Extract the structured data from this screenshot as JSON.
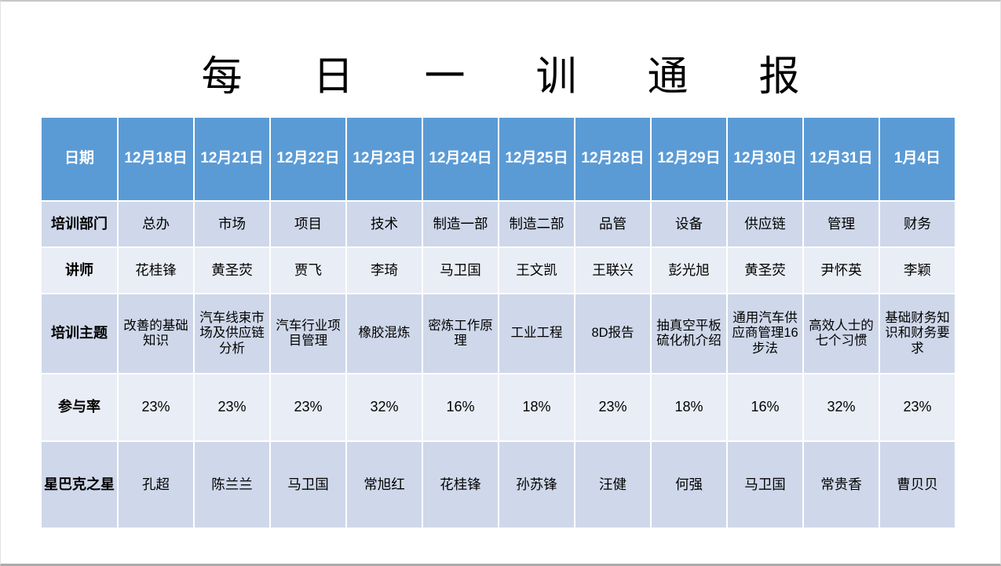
{
  "page": {
    "title": "每日一训通报"
  },
  "colors": {
    "header_bg": "#5B9BD5",
    "band_dark": "#CFD8EA",
    "band_light": "#E9EDF5",
    "header_text": "#FFFFFF",
    "body_text": "#000000"
  },
  "table": {
    "header_label": "日期",
    "dates": [
      "12月18日",
      "12月21日",
      "12月22日",
      "12月23日",
      "12月24日",
      "12月25日",
      "12月28日",
      "12月29日",
      "12月30日",
      "12月31日",
      "1月4日"
    ],
    "rows": [
      {
        "key": "department",
        "label": "培训部门",
        "values": [
          "总办",
          "市场",
          "项目",
          "技术",
          "制造一部",
          "制造二部",
          "品管",
          "设备",
          "供应链",
          "管理",
          "财务"
        ]
      },
      {
        "key": "lecturer",
        "label": "讲师",
        "values": [
          "花桂锋",
          "黄圣荧",
          "贾飞",
          "李琦",
          "马卫国",
          "王文凯",
          "王联兴",
          "彭光旭",
          "黄圣荧",
          "尹怀英",
          "李颖"
        ]
      },
      {
        "key": "topic",
        "label": "培训主题",
        "values": [
          "改善的基础知识",
          "汽车线束市场及供应链分析",
          "汽车行业项目管理",
          "橡胶混炼",
          "密炼工作原理",
          "工业工程",
          "8D报告",
          "抽真空平板硫化机介绍",
          "通用汽车供应商管理16步法",
          "高效人士的七个习惯",
          "基础财务知识和财务要求"
        ]
      },
      {
        "key": "participation",
        "label": "参与率",
        "values": [
          "23%",
          "23%",
          "23%",
          "32%",
          "16%",
          "18%",
          "23%",
          "18%",
          "16%",
          "32%",
          "23%"
        ]
      },
      {
        "key": "star",
        "label": "星巴克之星",
        "values": [
          "孔超",
          "陈兰兰",
          "马卫国",
          "常旭红",
          "花桂锋",
          "孙苏锋",
          "汪健",
          "何强",
          "马卫国",
          "常贵香",
          "曹贝贝"
        ]
      }
    ]
  }
}
